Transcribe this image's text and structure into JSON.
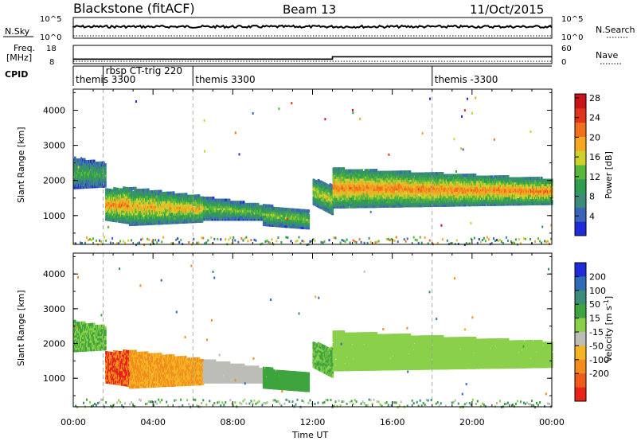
{
  "header": {
    "station": "Blackstone (fitACF)",
    "beam": "Beam 13",
    "date": "11/Oct/2015"
  },
  "panels": {
    "nsky": {
      "label": "N.Sky",
      "tick_top": "10^5",
      "tick_bottom": "10^0",
      "right_label": "N.Search",
      "right_tick_top": "10^5",
      "right_tick_bottom": "10^0"
    },
    "freq": {
      "label_line1": "Freq.",
      "label_line2": "[MHz]",
      "tick_top": "18",
      "tick_bottom": "8",
      "right_label": "Nave",
      "right_tick_top": "60",
      "right_tick_bottom": "0"
    },
    "cpid": {
      "label": "CPID",
      "segments": [
        {
          "text": "themis 3300",
          "start_hour": 0.0
        },
        {
          "text": "rbsp CT-trig 220",
          "start_hour": 1.5
        },
        {
          "text": "themis 3300",
          "start_hour": 6.0
        },
        {
          "text": "themis -3300",
          "start_hour": 18.0
        }
      ]
    }
  },
  "colorbars": {
    "power": {
      "label": "Power [dB]",
      "ticks": [
        "4",
        "8",
        "12",
        "16",
        "20",
        "24",
        "28"
      ],
      "colors": [
        "#1f2bd6",
        "#3a64b8",
        "#3d8c7a",
        "#2f9d50",
        "#56b73c",
        "#cfd02c",
        "#f5a623",
        "#f2701c",
        "#e0351a",
        "#c8141a"
      ]
    },
    "velocity": {
      "label": "Velocity [m s^-1]",
      "ticks": [
        "200",
        "100",
        "50",
        "15",
        "-15",
        "-50",
        "-100",
        "-200"
      ],
      "colors": [
        "#1f2bd6",
        "#2f6cb5",
        "#3d8c7a",
        "#3ea43d",
        "#8ad04a",
        "#bdbdb8",
        "#f5b423",
        "#f28c1d",
        "#ef5b1b",
        "#e8231a"
      ]
    }
  },
  "axes": {
    "ylabel": "Slant Range [km]",
    "yticks": [
      "1000",
      "2000",
      "3000",
      "4000"
    ],
    "xticks": [
      "00:00",
      "04:00",
      "08:00",
      "12:00",
      "16:00",
      "20:00",
      "00:00"
    ],
    "xlabel": "Time UT"
  },
  "chart_data": {
    "type": "heatmap",
    "x_range_hours": [
      0,
      24
    ],
    "y_range_km": [
      180,
      4600
    ],
    "cpid_change_hours": [
      1.5,
      6.0,
      18.0
    ],
    "frequency_mhz": [
      {
        "from_hour": 0,
        "to_hour": 13,
        "value": 10.5
      },
      {
        "from_hour": 13,
        "to_hour": 24,
        "value": 11.8
      }
    ],
    "scatter_bands": [
      {
        "from_hour": 0.0,
        "to_hour": 1.6,
        "top_km": [
          2600,
          2450
        ],
        "bottom_km": [
          1750,
          1800
        ],
        "power_db": 10,
        "velocity": 15
      },
      {
        "from_hour": 1.6,
        "to_hour": 2.8,
        "top_km": [
          1700,
          1750
        ],
        "bottom_km": [
          850,
          750
        ],
        "power_db": 18,
        "velocity": -200
      },
      {
        "from_hour": 2.8,
        "to_hour": 6.5,
        "top_km": [
          1750,
          1500
        ],
        "bottom_km": [
          700,
          800
        ],
        "power_db": 16,
        "velocity": -100
      },
      {
        "from_hour": 6.5,
        "to_hour": 9.5,
        "top_km": [
          1500,
          1250
        ],
        "bottom_km": [
          850,
          850
        ],
        "power_db": 12,
        "velocity": -30
      },
      {
        "from_hour": 9.5,
        "to_hour": 11.8,
        "top_km": [
          1250,
          1100
        ],
        "bottom_km": [
          700,
          600
        ],
        "power_db": 12,
        "velocity": 30
      },
      {
        "from_hour": 12.0,
        "to_hour": 13.0,
        "top_km": [
          2000,
          1800
        ],
        "bottom_km": [
          1300,
          1000
        ],
        "power_db": 14,
        "velocity": 15
      },
      {
        "from_hour": 13.0,
        "to_hour": 24.0,
        "top_km": [
          2300,
          2000
        ],
        "bottom_km": [
          1200,
          1300
        ],
        "power_db": 18,
        "velocity": 0
      }
    ],
    "ground_echo_band_km": [
      200,
      420
    ]
  }
}
